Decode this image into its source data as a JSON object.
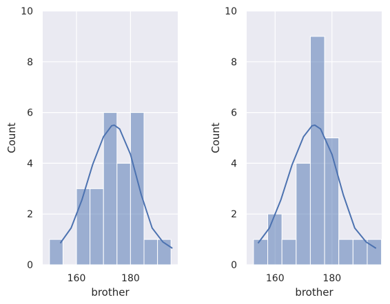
{
  "chart_data": [
    {
      "type": "histogram",
      "xlabel": "brother",
      "ylabel": "Count",
      "xlim": [
        147.5,
        197.5
      ],
      "ylim": [
        0,
        10
      ],
      "xticks": [
        160,
        180
      ],
      "yticks": [
        0,
        2,
        4,
        6,
        8,
        10
      ],
      "grid": true,
      "bins": [
        {
          "x0": 150.0,
          "x1": 155.0,
          "count": 1
        },
        {
          "x0": 155.0,
          "x1": 160.0,
          "count": 0
        },
        {
          "x0": 160.0,
          "x1": 165.0,
          "count": 3
        },
        {
          "x0": 165.0,
          "x1": 170.0,
          "count": 3
        },
        {
          "x0": 170.0,
          "x1": 175.0,
          "count": 6
        },
        {
          "x0": 175.0,
          "x1": 180.0,
          "count": 4
        },
        {
          "x0": 180.0,
          "x1": 185.0,
          "count": 6
        },
        {
          "x0": 185.0,
          "x1": 190.0,
          "count": 1
        },
        {
          "x0": 190.0,
          "x1": 195.0,
          "count": 1
        }
      ],
      "kde": {
        "x": [
          154,
          158,
          162,
          166,
          170,
          173,
          174,
          176,
          180,
          184,
          188,
          192,
          195.5
        ],
        "y": [
          0.85,
          1.45,
          2.55,
          3.95,
          5.05,
          5.48,
          5.5,
          5.35,
          4.35,
          2.75,
          1.45,
          0.9,
          0.65
        ]
      }
    },
    {
      "type": "histogram",
      "xlabel": "brother",
      "ylabel": "Count",
      "xlim": [
        150.0,
        197.5
      ],
      "ylim": [
        0,
        10
      ],
      "xticks": [
        160,
        180
      ],
      "yticks": [
        0,
        2,
        4,
        6,
        8,
        10
      ],
      "grid": true,
      "bins": [
        {
          "x0": 152.4,
          "x1": 157.4,
          "count": 1
        },
        {
          "x0": 157.4,
          "x1": 162.4,
          "count": 2
        },
        {
          "x0": 162.4,
          "x1": 167.4,
          "count": 1
        },
        {
          "x0": 167.4,
          "x1": 172.4,
          "count": 4
        },
        {
          "x0": 172.4,
          "x1": 177.4,
          "count": 9
        },
        {
          "x0": 177.4,
          "x1": 182.4,
          "count": 5
        },
        {
          "x0": 182.4,
          "x1": 187.4,
          "count": 1
        },
        {
          "x0": 187.4,
          "x1": 192.4,
          "count": 1
        },
        {
          "x0": 192.4,
          "x1": 197.4,
          "count": 1
        }
      ],
      "kde": {
        "x": [
          154,
          158,
          162,
          166,
          170,
          173,
          174,
          176,
          180,
          184,
          188,
          192,
          195.5
        ],
        "y": [
          0.85,
          1.45,
          2.55,
          3.95,
          5.05,
          5.48,
          5.5,
          5.35,
          4.35,
          2.75,
          1.45,
          0.9,
          0.65
        ]
      }
    }
  ],
  "colors": {
    "panel_bg": "#eaeaf2",
    "grid": "#ffffff",
    "bar_fill": "#4c72b0",
    "bar_opacity": 0.5,
    "bar_edge": "#ffffff",
    "kde_line": "#4c72b0",
    "text": "#262626"
  }
}
